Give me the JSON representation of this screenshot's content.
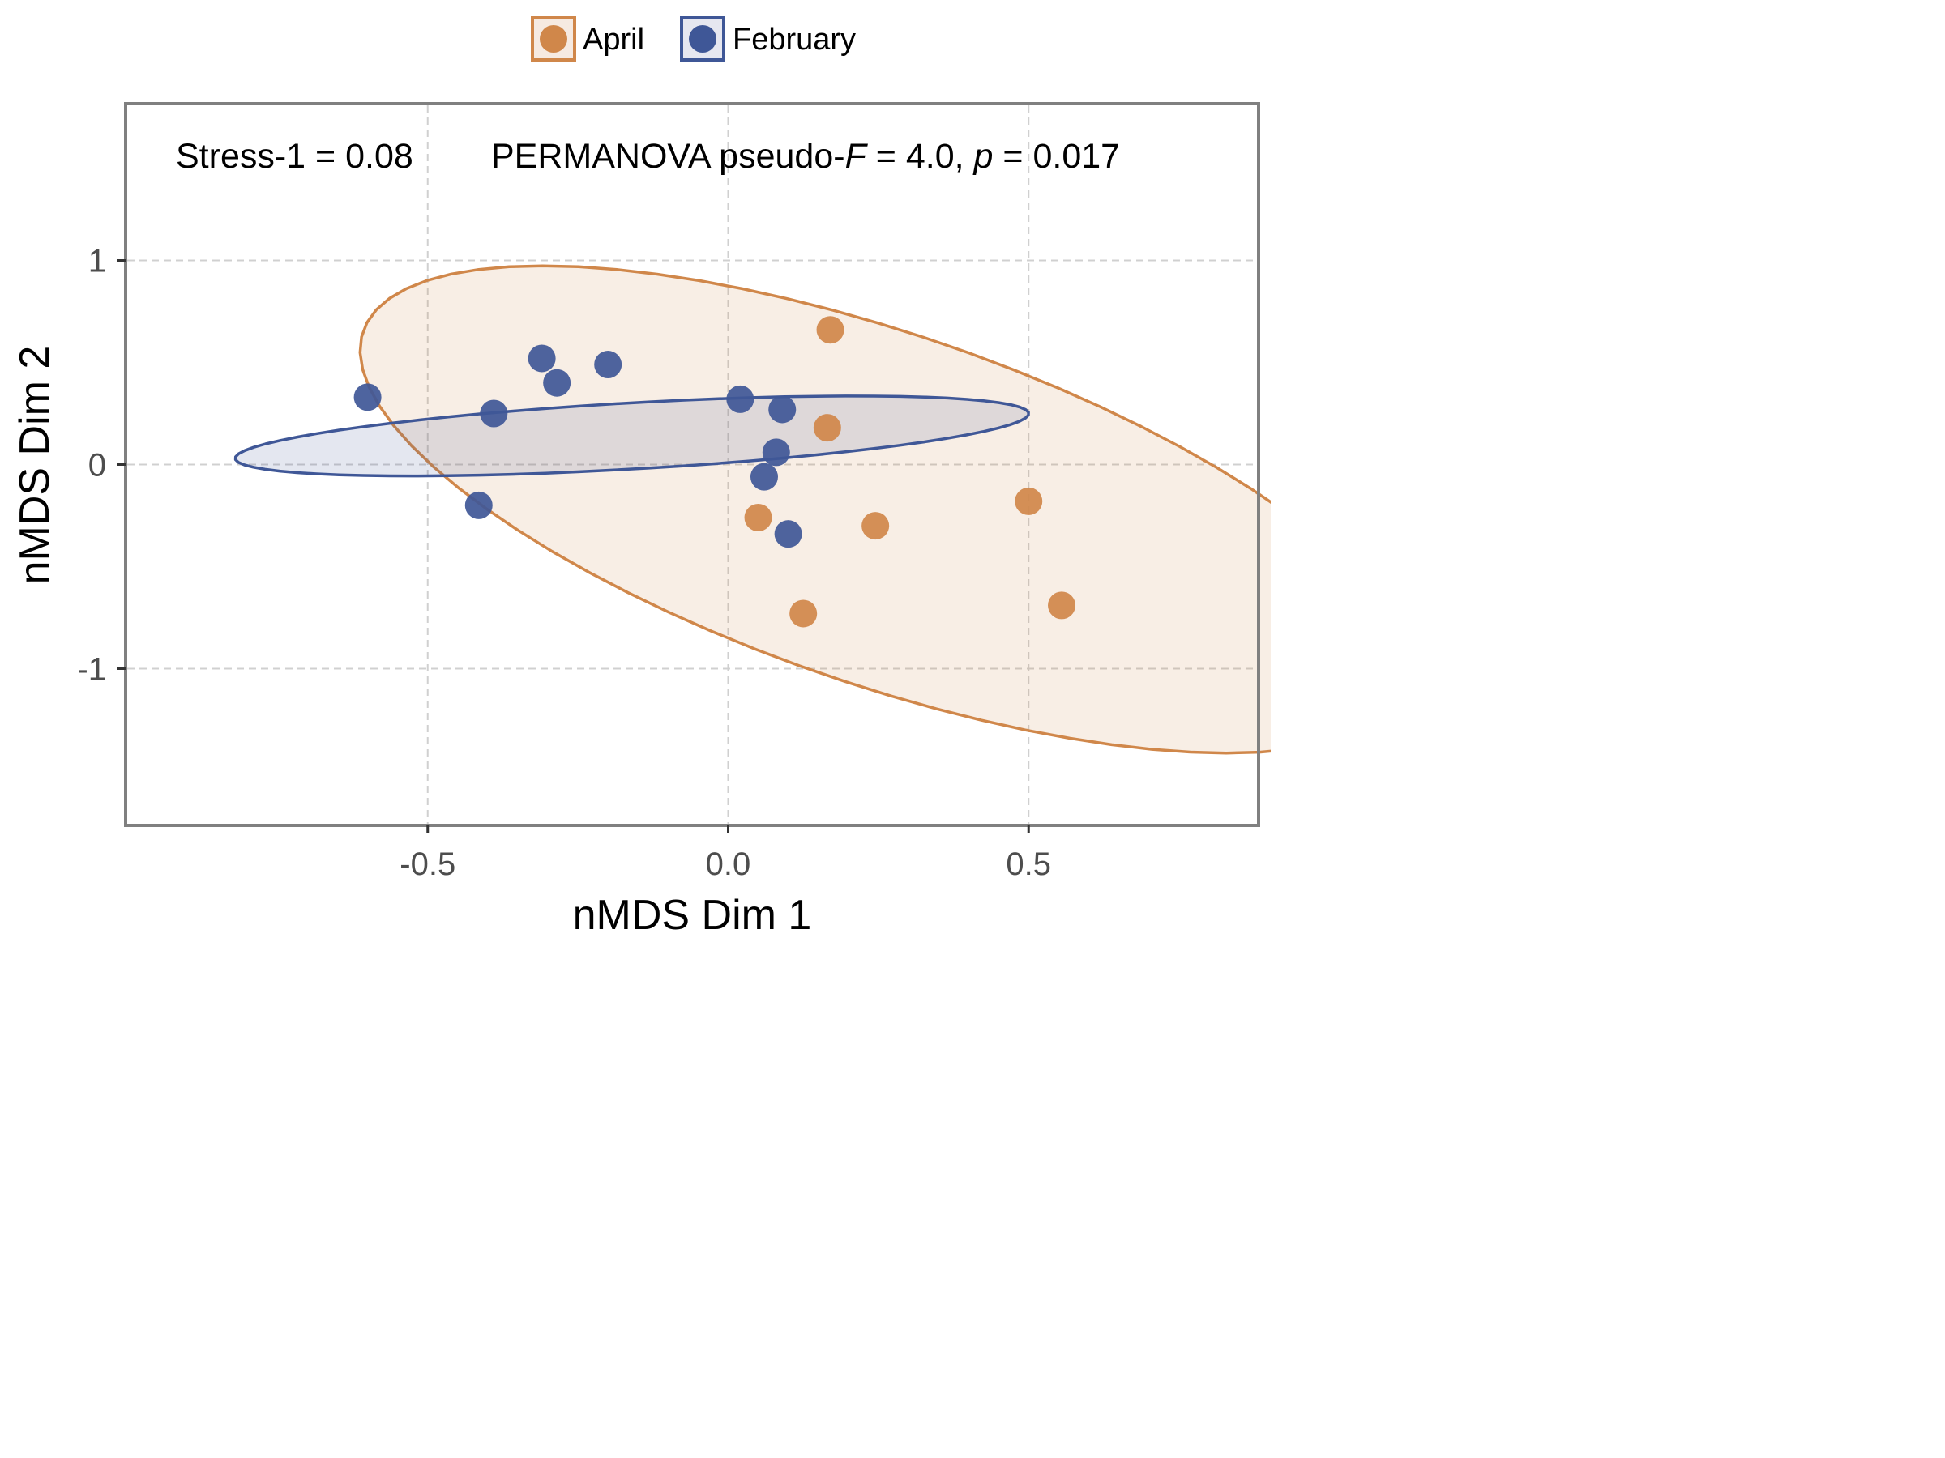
{
  "chart_data": {
    "type": "scatter",
    "title": "",
    "xlabel": "nMDS Dim 1",
    "ylabel": "nMDS Dim 2",
    "xlim": [
      -1.0,
      0.88
    ],
    "ylim": [
      -1.76,
      1.76
    ],
    "xticks": [
      -0.5,
      0.0,
      0.5
    ],
    "xtick_labels": [
      "-0.5",
      "0.0",
      "0.5"
    ],
    "yticks": [
      -1,
      0,
      1
    ],
    "ytick_labels": [
      "-1",
      "0",
      "1"
    ],
    "grid": true,
    "legend_position": "top-center",
    "annotation": {
      "stress": "Stress-1 = 0.08",
      "permanova_prefix": "PERMANOVA pseudo-",
      "f_symbol": "F",
      "f_value": " = 4.0, ",
      "p_symbol": "p",
      "p_value": " = 0.017"
    },
    "series": [
      {
        "name": "April",
        "color": "#d0874a",
        "fill": "#f6eae1",
        "ellipse": {
          "center": [
            0.26,
            -0.22
          ],
          "semi_axes": [
            0.58,
            1.36
          ],
          "angle_deg": 32
        },
        "points": [
          {
            "x": 0.17,
            "y": 0.66
          },
          {
            "x": 0.165,
            "y": 0.18
          },
          {
            "x": 0.05,
            "y": -0.26
          },
          {
            "x": 0.245,
            "y": -0.3
          },
          {
            "x": 0.5,
            "y": -0.18
          },
          {
            "x": 0.125,
            "y": -0.73
          },
          {
            "x": 0.555,
            "y": -0.69
          }
        ]
      },
      {
        "name": "February",
        "color": "#3f5797",
        "fill": "#e6e7f0",
        "ellipse": {
          "center": [
            -0.16,
            0.14
          ],
          "semi_axes": [
            0.16,
            0.67
          ],
          "angle_deg": 100
        },
        "points": [
          {
            "x": -0.6,
            "y": 0.33
          },
          {
            "x": -0.39,
            "y": 0.25
          },
          {
            "x": -0.31,
            "y": 0.52
          },
          {
            "x": -0.285,
            "y": 0.4
          },
          {
            "x": -0.2,
            "y": 0.49
          },
          {
            "x": 0.02,
            "y": 0.32
          },
          {
            "x": 0.09,
            "y": 0.27
          },
          {
            "x": 0.08,
            "y": 0.06
          },
          {
            "x": 0.06,
            "y": -0.06
          },
          {
            "x": 0.1,
            "y": -0.34
          },
          {
            "x": -0.415,
            "y": -0.2
          }
        ]
      }
    ]
  }
}
